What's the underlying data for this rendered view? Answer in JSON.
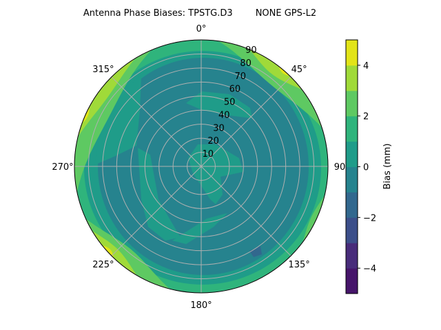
{
  "chart_data": {
    "type": "heatmap",
    "projection": "polar",
    "title": "Antenna Phase Biases: TPSTG.D3        NONE GPS-L2",
    "theta_direction": "clockwise",
    "theta_zero": "top",
    "theta_ticks": [
      "0°",
      "45°",
      "90",
      "135°",
      "180°",
      "225°",
      "270°",
      "315°"
    ],
    "theta_tick_values": [
      0,
      45,
      90,
      135,
      180,
      225,
      270,
      315
    ],
    "radial_ticks": [
      "10",
      "20",
      "30",
      "40",
      "50",
      "60",
      "70",
      "80",
      "90"
    ],
    "radial_tick_values": [
      10,
      20,
      30,
      40,
      50,
      60,
      70,
      80,
      90
    ],
    "rlim": [
      0,
      90
    ],
    "grid": true,
    "colorbar": {
      "label": "Bias (mm)",
      "levels": [
        -5,
        -4,
        -3,
        -2,
        -1,
        0,
        1,
        2,
        3,
        4,
        5
      ],
      "colors": [
        "#46156a",
        "#482c7a",
        "#3c4f8a",
        "#32688e",
        "#26838e",
        "#1f9c89",
        "#2fb47c",
        "#5ec962",
        "#a0da39",
        "#e2e418"
      ],
      "ticks": [
        "−4",
        "−2",
        "0",
        "2",
        "4"
      ],
      "tick_values": [
        -4,
        -2,
        0,
        2,
        4
      ],
      "placement": "right",
      "colormap": "viridis"
    }
  }
}
